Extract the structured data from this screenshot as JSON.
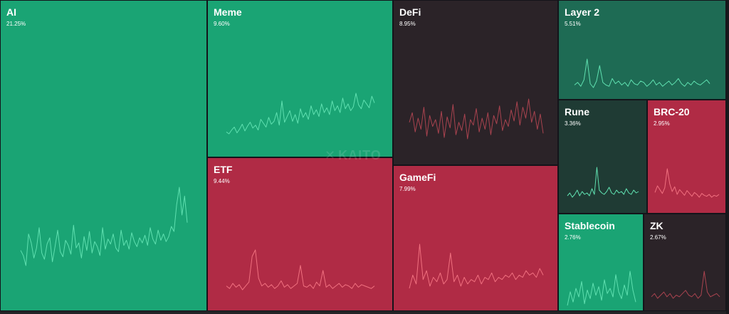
{
  "watermark": {
    "mark": "✕",
    "text": "KAITO"
  },
  "colors": {
    "green": "#1aa474",
    "green_line": "#5fe0b0",
    "dark_green": "#1e6b54",
    "darker_green": "#1f3b34",
    "red": "#b02b45",
    "red_line": "#f0707f",
    "dark": "#2b2328",
    "dark_line": "#a9434f"
  },
  "chart_data": {
    "type": "treemap",
    "title": "",
    "sectors": [
      {
        "key": "ai",
        "name": "AI",
        "share_label": "21.25%",
        "share": 21.25,
        "color": "green",
        "line_color": "green_line",
        "sparkline": [
          42,
          38,
          30,
          55,
          48,
          36,
          44,
          60,
          40,
          35,
          47,
          52,
          33,
          45,
          58,
          41,
          37,
          50,
          46,
          39,
          62,
          44,
          48,
          36,
          53,
          42,
          57,
          40,
          49,
          45,
          38,
          60,
          43,
          51,
          47,
          55,
          44,
          41,
          58,
          46,
          50,
          43,
          56,
          49,
          45,
          52,
          48,
          54,
          46,
          60,
          51,
          47,
          58,
          50,
          55,
          49,
          53,
          61,
          57,
          78,
          92,
          70,
          85,
          64
        ]
      },
      {
        "key": "meme",
        "name": "Meme",
        "share_label": "9.60%",
        "share": 9.6,
        "color": "green",
        "line_color": "green_line",
        "sparkline": [
          20,
          18,
          22,
          25,
          19,
          23,
          28,
          21,
          26,
          30,
          24,
          27,
          22,
          33,
          29,
          25,
          35,
          28,
          31,
          40,
          27,
          52,
          30,
          36,
          42,
          31,
          38,
          29,
          44,
          35,
          40,
          33,
          47,
          38,
          43,
          36,
          49,
          40,
          45,
          38,
          52,
          42,
          47,
          40,
          55,
          44,
          49,
          42,
          46,
          60,
          48,
          44,
          53,
          49,
          45,
          57,
          50
        ]
      },
      {
        "key": "defi",
        "name": "DeFi",
        "share_label": "8.95%",
        "share": 8.95,
        "color": "dark",
        "line_color": "dark_line",
        "sparkline": [
          55,
          62,
          48,
          58,
          50,
          66,
          45,
          60,
          52,
          57,
          47,
          63,
          44,
          59,
          51,
          68,
          46,
          55,
          49,
          61,
          43,
          57,
          53,
          65,
          48,
          58,
          50,
          62,
          46,
          60,
          54,
          67,
          49,
          57,
          52,
          64,
          56,
          70,
          53,
          66,
          58,
          72,
          55,
          63,
          50,
          61,
          47
        ]
      },
      {
        "key": "layer2",
        "name": "Layer 2",
        "share_label": "5.51%",
        "share": 5.51,
        "color": "dark_green",
        "line_color": "green_line",
        "sparkline": [
          10,
          12,
          9,
          14,
          30,
          11,
          8,
          13,
          25,
          12,
          10,
          9,
          15,
          11,
          13,
          10,
          12,
          9,
          14,
          11,
          10,
          13,
          12,
          9,
          11,
          14,
          10,
          12,
          9,
          11,
          13,
          10,
          12,
          15,
          11,
          9,
          12,
          10,
          13,
          11,
          10,
          12,
          14,
          11
        ]
      },
      {
        "key": "rune",
        "name": "Rune",
        "share_label": "3.36%",
        "share": 3.36,
        "color": "darker_green",
        "line_color": "green_line",
        "sparkline": [
          8,
          10,
          7,
          9,
          12,
          8,
          11,
          9,
          10,
          8,
          13,
          9,
          28,
          12,
          10,
          9,
          11,
          14,
          10,
          9,
          12,
          10,
          11,
          9,
          13,
          10,
          9,
          12,
          10,
          11
        ]
      },
      {
        "key": "brc20",
        "name": "BRC-20",
        "share_label": "2.95%",
        "share": 2.95,
        "color": "red",
        "line_color": "red_line",
        "sparkline": [
          15,
          22,
          18,
          14,
          20,
          40,
          24,
          16,
          21,
          13,
          18,
          15,
          12,
          17,
          14,
          11,
          15,
          13,
          10,
          14,
          12,
          11,
          13,
          10,
          12,
          11,
          13
        ]
      },
      {
        "key": "etf",
        "name": "ETF",
        "share_label": "9.44%",
        "share": 9.44,
        "color": "red",
        "line_color": "red_line",
        "sparkline": [
          12,
          10,
          14,
          11,
          13,
          9,
          12,
          15,
          35,
          40,
          18,
          12,
          14,
          11,
          13,
          10,
          12,
          16,
          11,
          13,
          10,
          12,
          14,
          28,
          12,
          11,
          13,
          10,
          15,
          12,
          24,
          11,
          13,
          10,
          12,
          14,
          11,
          13,
          12,
          10,
          14,
          11,
          13,
          12,
          11,
          10,
          12
        ]
      },
      {
        "key": "gamefi",
        "name": "GameFi",
        "share_label": "7.99%",
        "share": 7.99,
        "color": "red",
        "line_color": "red_line",
        "sparkline": [
          14,
          20,
          16,
          34,
          18,
          22,
          15,
          19,
          17,
          21,
          16,
          18,
          30,
          17,
          20,
          15,
          19,
          16,
          18,
          17,
          20,
          16,
          19,
          18,
          21,
          17,
          19,
          18,
          20,
          19,
          21,
          18,
          20,
          19,
          22,
          20,
          21,
          19,
          23,
          20
        ]
      },
      {
        "key": "stablecoin",
        "name": "Stablecoin",
        "share_label": "2.76%",
        "share": 2.76,
        "color": "green",
        "line_color": "green_line",
        "sparkline": [
          20,
          28,
          22,
          30,
          25,
          34,
          21,
          29,
          24,
          33,
          26,
          31,
          23,
          35,
          27,
          30,
          25,
          38,
          28,
          24,
          32,
          26,
          40,
          29,
          22
        ]
      },
      {
        "key": "zk",
        "name": "ZK",
        "share_label": "2.67%",
        "share": 2.67,
        "color": "dark",
        "line_color": "dark_line",
        "sparkline": [
          10,
          12,
          9,
          11,
          13,
          10,
          12,
          9,
          11,
          10,
          12,
          14,
          11,
          10,
          12,
          9,
          11,
          26,
          13,
          10,
          11,
          12,
          10
        ]
      }
    ]
  }
}
